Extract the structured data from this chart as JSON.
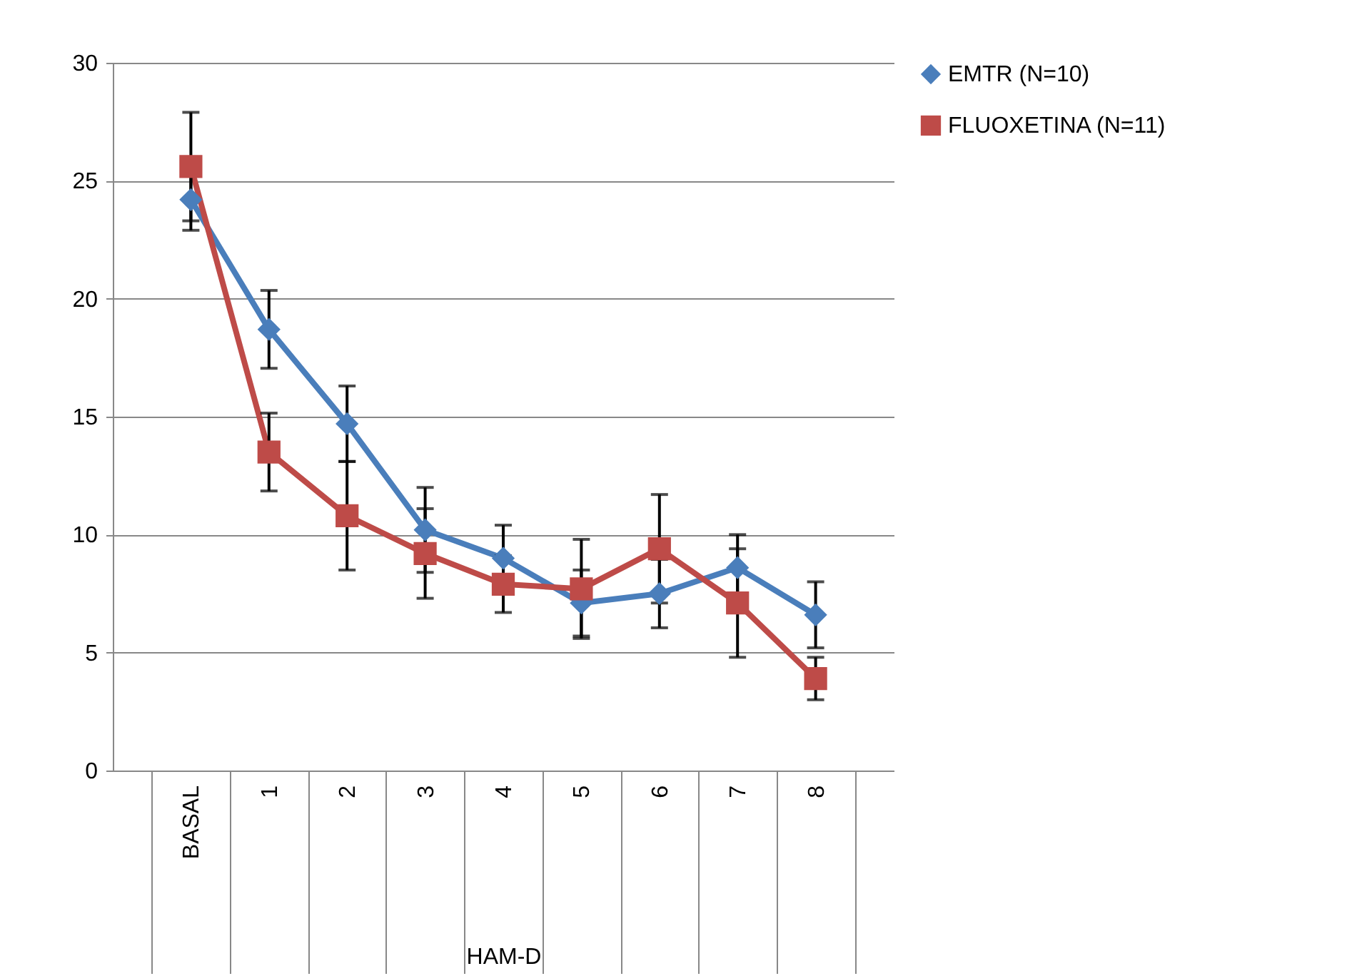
{
  "chart_data": {
    "type": "line",
    "xlabel": "HAM-D",
    "categories": [
      "BASAL",
      "1",
      "2",
      "3",
      "4",
      "5",
      "6",
      "7",
      "8"
    ],
    "series": [
      {
        "name": "EMTR (N=10)",
        "color": "#4a7ebb",
        "marker": "diamond",
        "values": [
          24.2,
          18.7,
          14.7,
          10.2,
          9.0,
          7.1,
          7.5,
          8.6,
          6.6
        ],
        "errors": [
          1.3,
          1.65,
          1.6,
          1.8,
          1.4,
          1.4,
          1.45,
          1.4,
          1.4
        ]
      },
      {
        "name": "FLUOXETINA (N=11)",
        "color": "#be4b48",
        "marker": "square",
        "values": [
          25.6,
          13.5,
          10.8,
          9.2,
          7.9,
          7.7,
          9.4,
          7.1,
          3.9
        ],
        "errors": [
          2.3,
          1.65,
          2.3,
          1.9,
          1.2,
          2.1,
          2.3,
          2.3,
          0.9
        ]
      }
    ],
    "ylim": [
      0,
      30
    ],
    "yticks": [
      0,
      5,
      10,
      15,
      20,
      25,
      30
    ],
    "grid": "y",
    "legend": "right",
    "line_style": "solid"
  }
}
